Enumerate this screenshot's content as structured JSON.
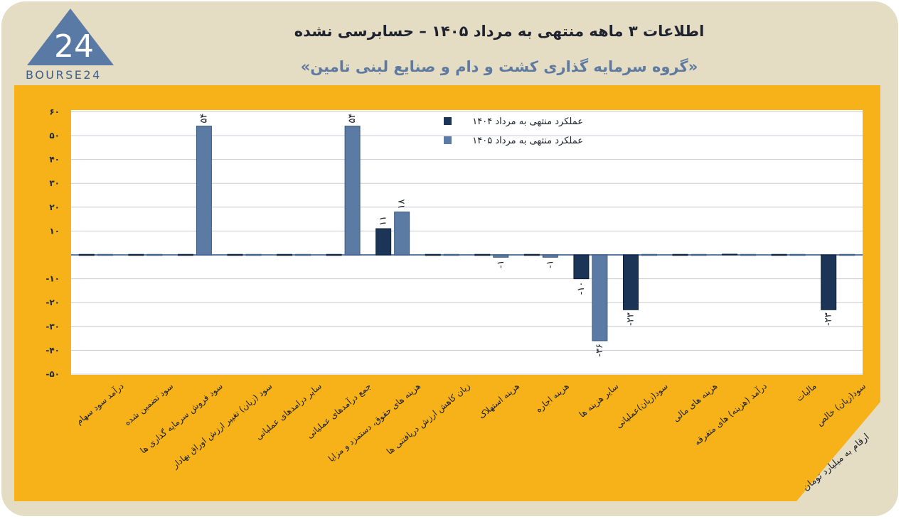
{
  "header": {
    "title": "اطلاعات ۳ ماهه منتهی به مرداد ۱۴۰۵ – حسابرسی نشده",
    "subtitle": "«گروه سرمایه گذاری کشت و دام و صنایع لبنی تامین»"
  },
  "logo": {
    "number": "24",
    "text": "BOURSE24",
    "icon": "triangle-logo"
  },
  "colors": {
    "background": "#e4dcc3",
    "panel": "#f7b21a",
    "plot": "#ffffff",
    "series_1404": "#1c3556",
    "series_1405": "#5b7ba4"
  },
  "units_note": "ارقام به میلیارد تومان",
  "chart_data": {
    "type": "bar",
    "categories": [
      "درآمد سود سهام",
      "سود تضمین شده",
      "سود فروش سرمایه گذاری ها",
      "سود (زیان) تغییر ارزش اوراق بهادار",
      "سایر درامدهای عملیاتی",
      "جمع درآمدهای عملیاتی",
      "هزینه های حقوق، دستمزد و مزایا",
      "زیان کاهش ارزش دریافتنی ها",
      "هزینه استهلاک",
      "هزینه اجاره",
      "سایر هزینه ها",
      "سود(زیان)عملیاتی",
      "هزینه های مالی",
      "درآمد (هزینه) های متفرقه",
      "مالیات",
      "سود(زیان) خالص"
    ],
    "series": [
      {
        "name": "عملکرد منتهی به مرداد ۱۴۰۴",
        "values": [
          0,
          0,
          0,
          0,
          0,
          0,
          11,
          0,
          0,
          0,
          -10,
          -23,
          0,
          0.3,
          0,
          -23
        ]
      },
      {
        "name": "عملکرد منتهی به مرداد ۱۴۰۵",
        "values": [
          0,
          0,
          54,
          0,
          0,
          54,
          18,
          0,
          -1,
          -1,
          -36,
          0,
          0,
          0,
          0,
          0
        ]
      }
    ],
    "data_labels": [
      {
        "series": 1,
        "category": 2,
        "text": "۵۴"
      },
      {
        "series": 1,
        "category": 5,
        "text": "۵۴"
      },
      {
        "series": 0,
        "category": 6,
        "text": "۱۱"
      },
      {
        "series": 1,
        "category": 6,
        "text": "۱۸"
      },
      {
        "series": 1,
        "category": 8,
        "text": "-۱"
      },
      {
        "series": 1,
        "category": 9,
        "text": "-۱"
      },
      {
        "series": 0,
        "category": 10,
        "text": "-۱۰"
      },
      {
        "series": 1,
        "category": 10,
        "text": "-۳۶"
      },
      {
        "series": 0,
        "category": 11,
        "text": "-۲۳"
      },
      {
        "series": 0,
        "category": 15,
        "text": "-۲۳"
      }
    ],
    "y_ticks": [
      "۶۰",
      "۵۰",
      "۴۰",
      "۳۰",
      "۲۰",
      "۱۰",
      "",
      "-۱۰",
      "-۲۰",
      "-۳۰",
      "-۴۰",
      "-۵۰"
    ],
    "y_tick_values": [
      60,
      50,
      40,
      30,
      20,
      10,
      0,
      -10,
      -20,
      -30,
      -40,
      -50
    ],
    "ylim": [
      -50,
      60
    ],
    "grid": true,
    "legend_position": "top-right"
  }
}
